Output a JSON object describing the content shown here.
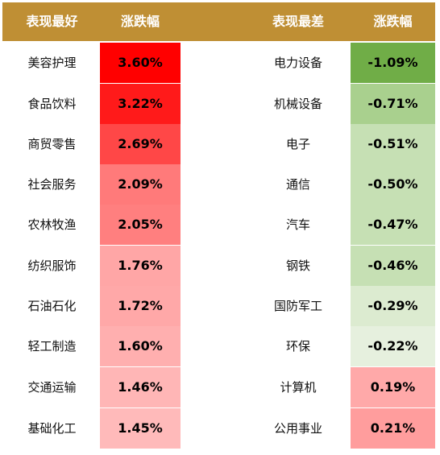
{
  "headers": {
    "best_label": "表现最好",
    "best_change": "涨跌幅",
    "worst_label": "表现最差",
    "worst_change": "涨跌幅"
  },
  "rows": [
    {
      "best_name": "美容护理",
      "best_value": "3.60%",
      "best_color": "#ff0000",
      "worst_name": "电力设备",
      "worst_value": "-1.09%",
      "worst_color": "#70ad47"
    },
    {
      "best_name": "食品饮料",
      "best_value": "3.22%",
      "best_color": "#ff1a1a",
      "worst_name": "机械设备",
      "worst_value": "-0.71%",
      "worst_color": "#a9d08e"
    },
    {
      "best_name": "商贸零售",
      "best_value": "2.69%",
      "best_color": "#ff4747",
      "worst_name": "电子",
      "worst_value": "-0.51%",
      "worst_color": "#c6e0b4"
    },
    {
      "best_name": "社会服务",
      "best_value": "2.09%",
      "best_color": "#ff7a7a",
      "worst_name": "通信",
      "worst_value": "-0.50%",
      "worst_color": "#c6e0b4"
    },
    {
      "best_name": "农林牧渔",
      "best_value": "2.05%",
      "best_color": "#ff7f7f",
      "worst_name": "汽车",
      "worst_value": "-0.47%",
      "worst_color": "#c6e0b4"
    },
    {
      "best_name": "纺织服饰",
      "best_value": "1.76%",
      "best_color": "#ffa6a6",
      "worst_name": "钢铁",
      "worst_value": "-0.46%",
      "worst_color": "#c6e0b4"
    },
    {
      "best_name": "石油石化",
      "best_value": "1.72%",
      "best_color": "#ffa8a8",
      "worst_name": "国防军工",
      "worst_value": "-0.29%",
      "worst_color": "#dcebd0"
    },
    {
      "best_name": "轻工制造",
      "best_value": "1.60%",
      "best_color": "#ffafaf",
      "worst_name": "环保",
      "worst_value": "-0.22%",
      "worst_color": "#e6f0de"
    },
    {
      "best_name": "交通运输",
      "best_value": "1.46%",
      "best_color": "#ffb6b6",
      "worst_name": "计算机",
      "worst_value": "0.19%",
      "worst_color": "#ffa9a9"
    },
    {
      "best_name": "基础化工",
      "best_value": "1.45%",
      "best_color": "#ffbaba",
      "worst_name": "公用事业",
      "worst_value": "0.21%",
      "worst_color": "#ff9d9d"
    }
  ]
}
